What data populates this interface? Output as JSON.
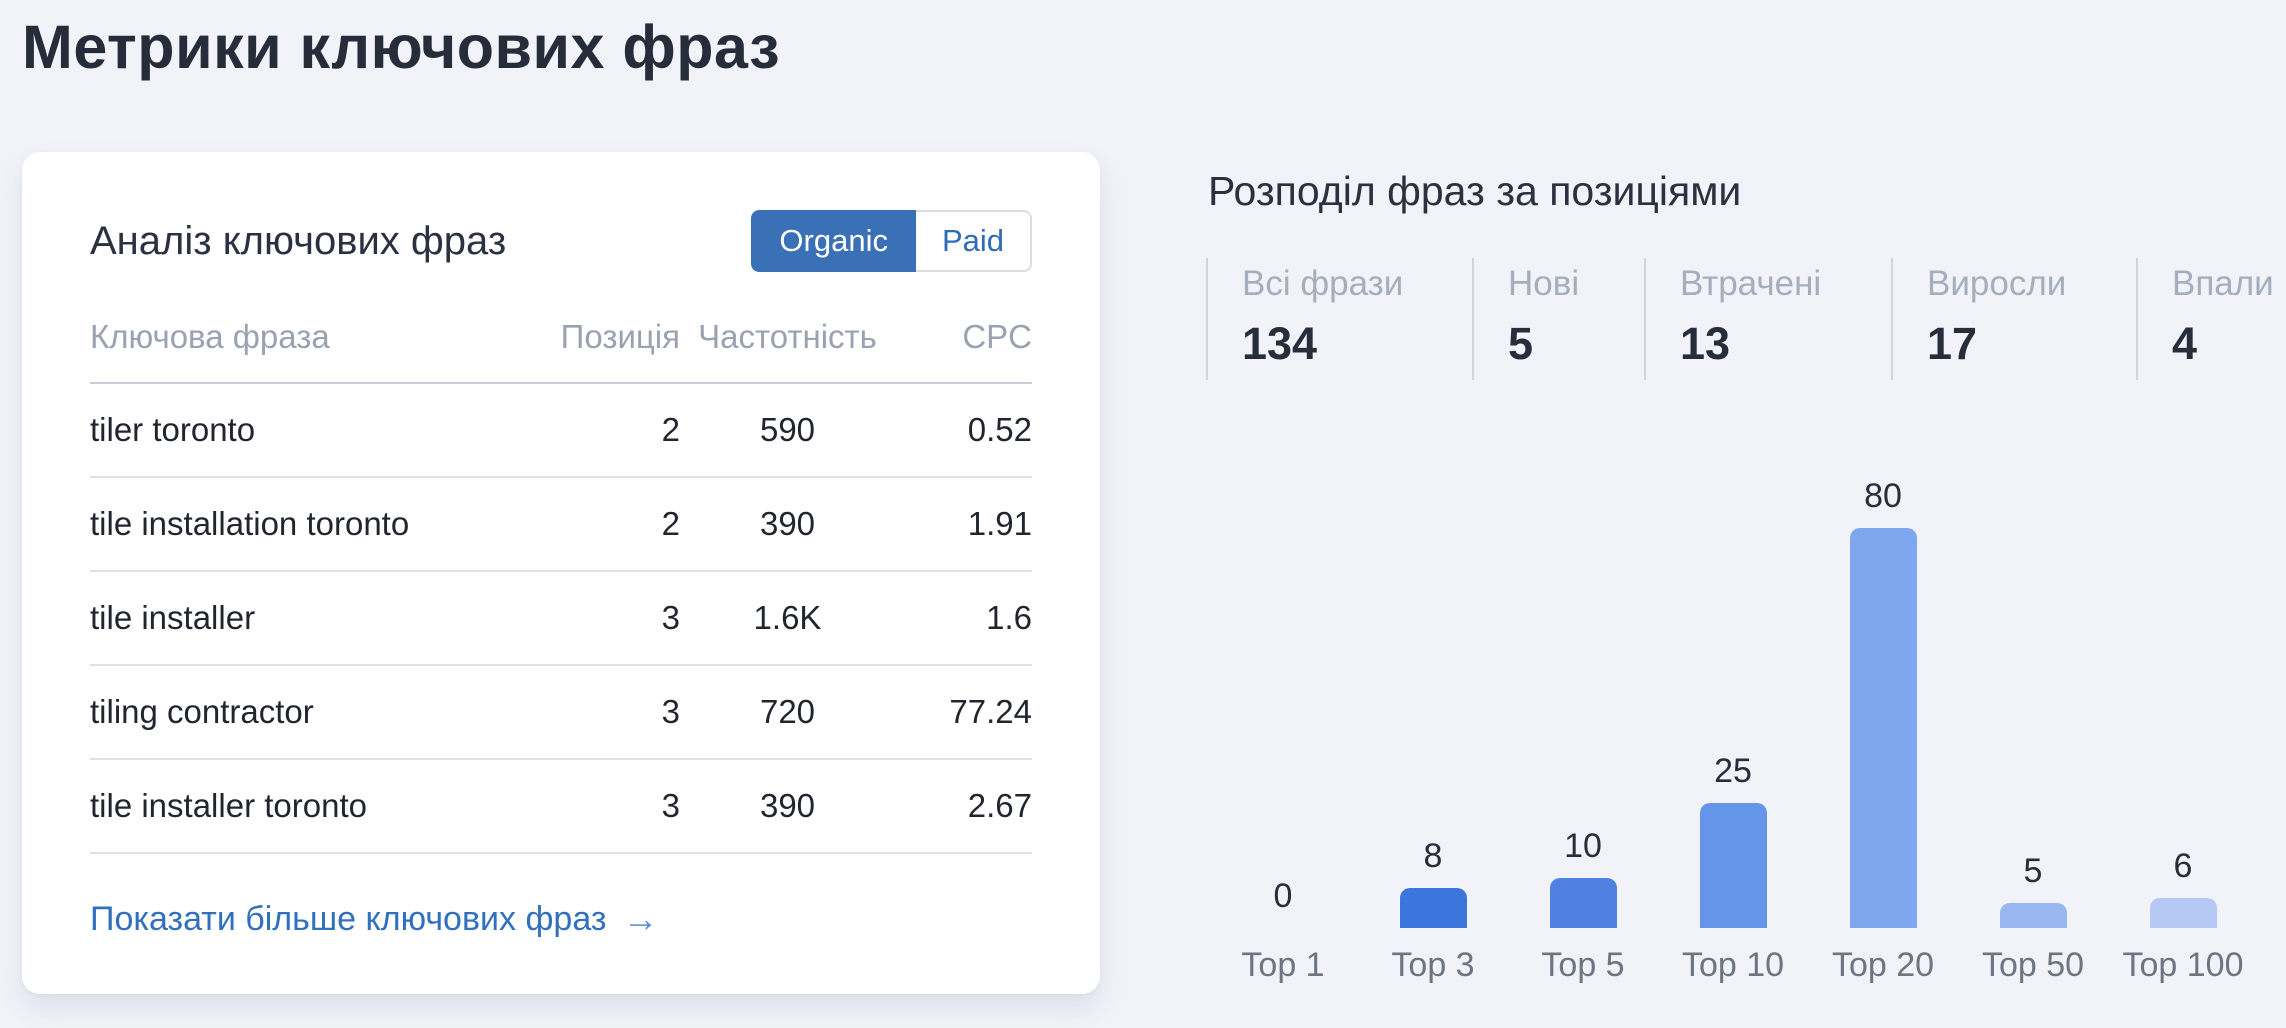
{
  "page": {
    "title": "Метрики ключових фраз"
  },
  "colors": {
    "background": "#f1f3f8",
    "accent_toggle_blue": "#3a71b6",
    "link_blue": "#3070bf"
  },
  "keyword_card": {
    "heading": "Аналіз ключових фраз",
    "toggle": {
      "organic_label": "Organic",
      "paid_label": "Paid",
      "active": "Organic"
    },
    "table": {
      "columns": [
        "Ключова фраза",
        "Позиція",
        "Частотність",
        "CPC"
      ],
      "rows": [
        {
          "keyword": "tiler toronto",
          "position": "2",
          "volume": "590",
          "cpc": "0.52"
        },
        {
          "keyword": "tile installation toronto",
          "position": "2",
          "volume": "390",
          "cpc": "1.91"
        },
        {
          "keyword": "tile installer",
          "position": "3",
          "volume": "1.6K",
          "cpc": "1.6"
        },
        {
          "keyword": "tiling contractor",
          "position": "3",
          "volume": "720",
          "cpc": "77.24"
        },
        {
          "keyword": "tile installer toronto",
          "position": "3",
          "volume": "390",
          "cpc": "2.67"
        }
      ]
    },
    "more_link": {
      "label": "Показати більше ключових фраз",
      "arrow": "→"
    }
  },
  "distribution": {
    "heading": "Розподіл фраз за позиціями",
    "stats": [
      {
        "label": "Всі фрази",
        "value": "134"
      },
      {
        "label": "Нові",
        "value": "5"
      },
      {
        "label": "Втрачені",
        "value": "13"
      },
      {
        "label": "Виросли",
        "value": "17"
      },
      {
        "label": "Впали",
        "value": "4"
      }
    ]
  },
  "chart_data": {
    "type": "bar",
    "title": "Розподіл фраз за позиціями",
    "categories": [
      "Top 1",
      "Top 3",
      "Top 5",
      "Top 10",
      "Top 20",
      "Top 50",
      "Top 100"
    ],
    "values": [
      0,
      8,
      10,
      25,
      80,
      5,
      6
    ],
    "bar_colors": [
      "#3c76dd",
      "#3c76dd",
      "#4e81e2",
      "#6495e8",
      "#7ea7ef",
      "#98b6f0",
      "#b6c9f5"
    ],
    "xlabel": "",
    "ylabel": "",
    "ylim": [
      0,
      80
    ],
    "grid": false,
    "legend": false,
    "value_labels": true
  }
}
